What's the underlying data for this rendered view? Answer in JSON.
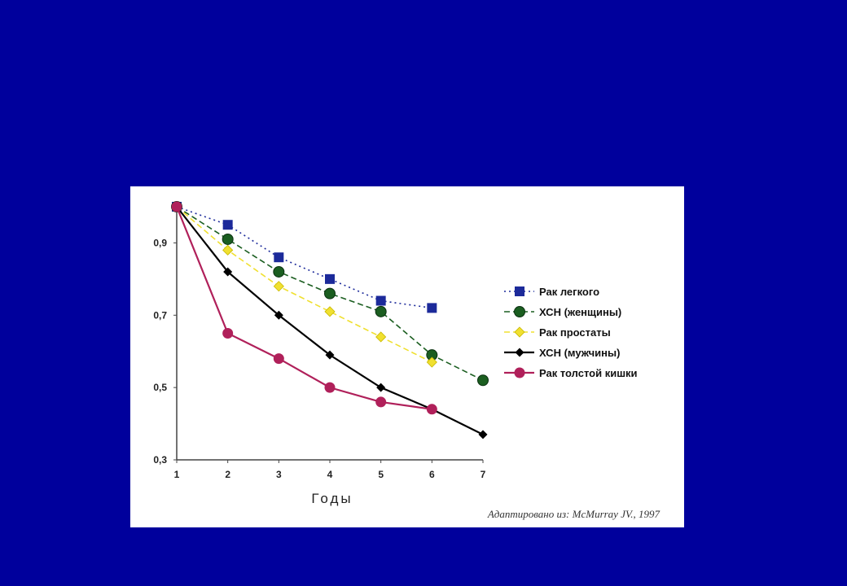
{
  "chart_data": {
    "type": "line",
    "xlabel": "Годы",
    "ylabel": "",
    "x": [
      1,
      2,
      3,
      4,
      5,
      6,
      7
    ],
    "xlim": [
      1,
      7
    ],
    "ylim": [
      0.3,
      1.0
    ],
    "yticks": [
      0.3,
      0.5,
      0.7,
      0.9
    ],
    "ytick_labels": [
      "0,3",
      "0,5",
      "0,7",
      "0,9"
    ],
    "xtick_labels": [
      "1",
      "2",
      "3",
      "4",
      "5",
      "6",
      "7"
    ],
    "grid": false,
    "legend_position": "right",
    "series": [
      {
        "name": "Рак легкого",
        "color": "#1c2a9a",
        "dash": "2,4",
        "marker": "square",
        "x": [
          1,
          2,
          3,
          4,
          5,
          6
        ],
        "values": [
          1.0,
          0.95,
          0.86,
          0.8,
          0.74,
          0.72
        ]
      },
      {
        "name": "ХСН (женщины)",
        "color": "#1b5e20",
        "dash": "7,4",
        "marker": "circle-dark",
        "x": [
          1,
          2,
          3,
          4,
          5,
          6,
          7
        ],
        "values": [
          1.0,
          0.91,
          0.82,
          0.76,
          0.71,
          0.59,
          0.52
        ]
      },
      {
        "name": "Рак простаты",
        "color": "#f0e030",
        "dash": "7,4",
        "marker": "diamond",
        "x": [
          1,
          2,
          3,
          4,
          5,
          6
        ],
        "values": [
          1.0,
          0.88,
          0.78,
          0.71,
          0.64,
          0.57
        ]
      },
      {
        "name": "ХСН (мужчины)",
        "color": "#000000",
        "dash": "",
        "marker": "diamond-black",
        "x": [
          1,
          2,
          3,
          4,
          5,
          6,
          7
        ],
        "values": [
          1.0,
          0.82,
          0.7,
          0.59,
          0.5,
          0.44,
          0.37
        ]
      },
      {
        "name": "Рак толстой кишки",
        "color": "#b0205a",
        "dash": "",
        "marker": "circle",
        "x": [
          1,
          2,
          3,
          4,
          5,
          6
        ],
        "values": [
          1.0,
          0.65,
          0.58,
          0.5,
          0.46,
          0.44
        ]
      }
    ]
  },
  "source_note": "Адаптировано из: McMurray JV., 1997"
}
